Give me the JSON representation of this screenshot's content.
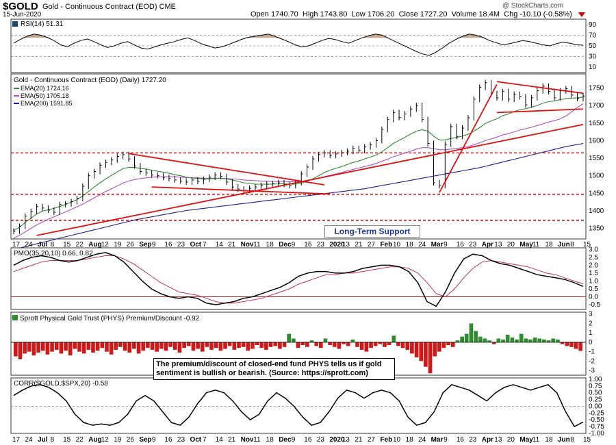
{
  "header": {
    "symbol": "$GOLD",
    "description": "Gold - Continuous Contract (EOD) CME",
    "date": "15-Jun-2020",
    "watermark": "@ StockCharts.com",
    "open_label": "Open",
    "open": "1740.70",
    "high_label": "High",
    "high": "1743.80",
    "low_label": "Low",
    "low": "1706.20",
    "close_label": "Close",
    "close": "1727.20",
    "volume_label": "Volume",
    "volume": "18.4M",
    "chg_label": "Chg",
    "chg": "-10.10 (-0.58%)"
  },
  "colors": {
    "price": "#000000",
    "ema20": "#2e8b2e",
    "ema50": "#b050c0",
    "ema200": "#1c1c8c",
    "trend": "#e01010",
    "pmo_signal": "#c0306a",
    "hist": "#d01818",
    "hist_pos": "#2e8b2e",
    "rsi_fill": "#b08868"
  },
  "chart_data": [
    {
      "type": "line",
      "title": "RSI(14) 51.31",
      "ylim": [
        0,
        100
      ],
      "yticks": [
        "90",
        "70",
        "50",
        "30",
        "10"
      ],
      "reference_lines": [
        70,
        50,
        30
      ],
      "values": [
        55,
        62,
        68,
        72,
        70,
        66,
        60,
        52,
        48,
        55,
        60,
        63,
        58,
        52,
        47,
        50,
        55,
        58,
        52,
        46,
        44,
        48,
        52,
        55,
        58,
        62,
        65,
        60,
        54,
        50,
        46,
        48,
        52,
        57,
        62,
        66,
        68,
        70,
        72,
        68,
        63,
        58,
        52,
        48,
        50,
        55,
        60,
        64,
        62,
        58,
        55,
        60,
        65,
        69,
        72,
        70,
        64,
        58,
        52,
        46,
        40,
        35,
        32,
        38,
        46,
        55,
        62,
        68,
        72,
        70,
        66,
        60,
        56,
        52,
        54,
        57,
        60,
        58,
        55,
        52,
        50,
        54,
        57,
        55,
        52,
        51.31
      ]
    },
    {
      "type": "line",
      "title": "Gold - Continuous Contract (EOD) (Daily) 1727.20",
      "ylim": [
        1320,
        1790
      ],
      "yticks": [
        "1750",
        "1700",
        "1650",
        "1600",
        "1550",
        "1500",
        "1450",
        "1400",
        "1350"
      ],
      "xticks": [
        "17",
        "24",
        "Jul",
        "8",
        "15",
        "22",
        "Aug",
        "12",
        "19",
        "26",
        "Sep",
        "9",
        "16",
        "23",
        "Oct",
        "7",
        "14",
        "21",
        "Nov",
        "11",
        "18",
        "Dec",
        "9",
        "16",
        "23",
        "2020",
        "13",
        "21",
        "27",
        "Feb",
        "10",
        "18",
        "24",
        "Mar",
        "9",
        "16",
        "23",
        "Apr",
        "13",
        "20",
        "May",
        "11",
        "18",
        "Jun",
        "8",
        "15"
      ],
      "legend": [
        "EMA(20) 1724.16",
        "EMA(50) 1705.18",
        "EMA(200) 1591.85"
      ],
      "close": [
        1342,
        1356,
        1385,
        1398,
        1412,
        1408,
        1402,
        1396,
        1418,
        1420,
        1426,
        1435,
        1470,
        1500,
        1512,
        1530,
        1538,
        1545,
        1555,
        1560,
        1548,
        1528,
        1512,
        1508,
        1502,
        1500,
        1495,
        1492,
        1488,
        1485,
        1482,
        1488,
        1484,
        1490,
        1496,
        1502,
        1498,
        1482,
        1468,
        1462,
        1458,
        1464,
        1468,
        1472,
        1476,
        1478,
        1480,
        1475,
        1472,
        1480,
        1505,
        1525,
        1548,
        1560,
        1565,
        1558,
        1562,
        1566,
        1570,
        1578,
        1572,
        1582,
        1588,
        1600,
        1632,
        1660,
        1680,
        1666,
        1676,
        1690,
        1700,
        1660,
        1592,
        1480,
        1472,
        1590,
        1640,
        1612,
        1636,
        1665,
        1718,
        1752,
        1765,
        1734,
        1722,
        1740,
        1718,
        1732,
        1725,
        1702,
        1722,
        1742,
        1755,
        1740,
        1722,
        1742,
        1748,
        1730,
        1720,
        1727.2
      ],
      "ema20": [
        1344,
        1353,
        1367,
        1379,
        1391,
        1399,
        1403,
        1407,
        1412,
        1418,
        1425,
        1432,
        1442,
        1455,
        1468,
        1480,
        1491,
        1501,
        1511,
        1520,
        1524,
        1524,
        1521,
        1519,
        1516,
        1513,
        1510,
        1507,
        1503,
        1500,
        1496,
        1494,
        1492,
        1491,
        1491,
        1492,
        1493,
        1491,
        1488,
        1484,
        1480,
        1478,
        1476,
        1476,
        1476,
        1476,
        1477,
        1477,
        1476,
        1476,
        1479,
        1484,
        1491,
        1500,
        1509,
        1516,
        1521,
        1526,
        1532,
        1538,
        1542,
        1548,
        1553,
        1559,
        1568,
        1580,
        1592,
        1601,
        1609,
        1619,
        1627,
        1631,
        1627,
        1613,
        1602,
        1602,
        1606,
        1609,
        1613,
        1618,
        1627,
        1637,
        1649,
        1656,
        1662,
        1671,
        1676,
        1683,
        1688,
        1691,
        1695,
        1700,
        1707,
        1711,
        1713,
        1717,
        1720,
        1721,
        1722,
        1724.16
      ],
      "ema50": [
        1322,
        1330,
        1340,
        1350,
        1360,
        1368,
        1376,
        1383,
        1390,
        1397,
        1404,
        1411,
        1419,
        1428,
        1437,
        1446,
        1455,
        1463,
        1471,
        1479,
        1485,
        1489,
        1492,
        1494,
        1496,
        1497,
        1497,
        1497,
        1497,
        1496,
        1495,
        1494,
        1494,
        1493,
        1493,
        1493,
        1493,
        1492,
        1491,
        1490,
        1488,
        1487,
        1486,
        1485,
        1485,
        1484,
        1484,
        1484,
        1483,
        1483,
        1484,
        1486,
        1489,
        1493,
        1497,
        1501,
        1505,
        1509,
        1514,
        1518,
        1522,
        1526,
        1530,
        1535,
        1541,
        1547,
        1554,
        1559,
        1565,
        1570,
        1576,
        1580,
        1580,
        1577,
        1574,
        1574,
        1576,
        1578,
        1580,
        1583,
        1588,
        1594,
        1600,
        1605,
        1610,
        1616,
        1620,
        1625,
        1630,
        1634,
        1638,
        1643,
        1648,
        1653,
        1657,
        1662,
        1670,
        1682,
        1695,
        1705.18
      ],
      "ema200": [
        1290,
        1294,
        1298,
        1302,
        1306,
        1310,
        1314,
        1318,
        1322,
        1326,
        1330,
        1334,
        1338,
        1342,
        1346,
        1350,
        1354,
        1358,
        1362,
        1366,
        1370,
        1374,
        1377,
        1380,
        1383,
        1386,
        1389,
        1392,
        1395,
        1398,
        1401,
        1403,
        1405,
        1407,
        1409,
        1411,
        1413,
        1415,
        1417,
        1419,
        1421,
        1423,
        1425,
        1427,
        1429,
        1431,
        1433,
        1435,
        1437,
        1439,
        1441,
        1443,
        1445,
        1447,
        1449,
        1451,
        1453,
        1455,
        1457,
        1459,
        1461,
        1463,
        1466,
        1469,
        1472,
        1475,
        1478,
        1481,
        1484,
        1487,
        1490,
        1493,
        1496,
        1499,
        1502,
        1505,
        1508,
        1511,
        1514,
        1517,
        1520,
        1523,
        1527,
        1531,
        1535,
        1539,
        1543,
        1547,
        1551,
        1555,
        1559,
        1563,
        1567,
        1571,
        1575,
        1579,
        1583,
        1586,
        1589,
        1591.85
      ]
    },
    {
      "type": "line",
      "title": "PMO(35,20,10) 0.66, 0.82",
      "ylim": [
        -0.8,
        3.1
      ],
      "yticks": [
        "3.0",
        "2.5",
        "2.0",
        "1.5",
        "1.0",
        "0.5",
        "0.0",
        "-0.5"
      ],
      "pmo": [
        2.0,
        2.3,
        2.5,
        2.6,
        2.5,
        2.3,
        2.2,
        2.3,
        2.5,
        2.7,
        2.8,
        2.6,
        2.2,
        1.6,
        1.0,
        0.5,
        0.2,
        0.0,
        -0.1,
        0.0,
        -0.1,
        -0.4,
        -0.5,
        -0.4,
        -0.3,
        -0.1,
        0.0,
        0.2,
        0.4,
        0.6,
        0.9,
        1.3,
        1.5,
        1.6,
        1.6,
        1.5,
        1.5,
        1.6,
        1.8,
        1.9,
        2.0,
        2.0,
        1.9,
        1.6,
        0.9,
        -0.3,
        -0.6,
        0.3,
        1.5,
        2.4,
        2.7,
        2.6,
        2.3,
        2.1,
        2.0,
        1.8,
        1.6,
        1.4,
        1.3,
        1.2,
        1.1,
        0.9,
        0.66
      ],
      "signal": [
        1.6,
        1.8,
        2.0,
        2.2,
        2.3,
        2.3,
        2.3,
        2.3,
        2.4,
        2.5,
        2.6,
        2.6,
        2.4,
        2.1,
        1.7,
        1.3,
        0.9,
        0.6,
        0.3,
        0.2,
        0.1,
        -0.1,
        -0.3,
        -0.4,
        -0.4,
        -0.3,
        -0.2,
        -0.1,
        0.1,
        0.3,
        0.5,
        0.8,
        1.0,
        1.2,
        1.4,
        1.4,
        1.5,
        1.5,
        1.6,
        1.7,
        1.8,
        1.9,
        1.9,
        1.8,
        1.5,
        0.9,
        0.2,
        0.0,
        0.5,
        1.2,
        1.8,
        2.2,
        2.3,
        2.2,
        2.1,
        2.0,
        1.9,
        1.7,
        1.5,
        1.4,
        1.2,
        1.0,
        0.82
      ]
    },
    {
      "type": "bar",
      "title": "Sprott Physical Gold Trust (PHYS) Premium/Discount -0.92",
      "ylim": [
        -3.5,
        3.2
      ],
      "yticks": [
        "3",
        "2",
        "1",
        "0",
        "-1",
        "-2",
        "-3"
      ],
      "values": [
        -1.5,
        -1.8,
        -1.2,
        -1.0,
        -1.4,
        -1.1,
        -0.9,
        -1.3,
        -1.0,
        -0.8,
        -1.2,
        -0.9,
        -1.4,
        -0.7,
        -1.0,
        -1.2,
        -0.8,
        -1.1,
        -0.9,
        -0.6,
        -1.0,
        -1.3,
        -0.8,
        -0.5,
        -0.9,
        -1.1,
        -0.7,
        -1.2,
        -0.9,
        -0.6,
        -0.8,
        -1.0,
        -0.7,
        -0.9,
        -0.5,
        -0.8,
        -1.1,
        -0.6,
        -0.4,
        -0.9,
        -0.7,
        -1.0,
        -0.5,
        -0.8,
        -0.6,
        -0.9,
        -0.7,
        -0.4,
        -0.8,
        -0.6,
        -0.5,
        -0.9,
        -0.7,
        -0.3,
        -0.6,
        -0.8,
        -0.5,
        -0.4,
        -0.7,
        -0.5,
        0.9,
        0.4,
        -0.6,
        -0.3,
        -0.5,
        0.2,
        -0.4,
        -0.6,
        0.4,
        -0.3,
        -0.5,
        -0.7,
        -0.2,
        -0.4,
        0.3,
        -0.5,
        -0.8,
        -1.0,
        -0.6,
        -0.4,
        -0.2,
        -0.5,
        -0.3,
        0.7,
        -0.4,
        -0.6,
        -0.8,
        -1.2,
        -1.6,
        -2.0,
        -2.6,
        -3.3,
        -1.5,
        -1.0,
        -0.6,
        -0.3,
        -0.5,
        0.2,
        0.6,
        0.9,
        2.0,
        1.2,
        0.6,
        0.4,
        0.2,
        -0.2,
        0.4,
        0.3,
        0.8,
        0.5,
        0.3,
        0.9,
        0.4,
        0.3,
        0.5,
        0.4,
        0.3,
        0.2,
        0.4,
        0.3,
        -0.2,
        -0.4,
        -0.5,
        -0.7,
        -0.92
      ]
    },
    {
      "type": "line",
      "title": "CORR($GOLD,$SPX,20) -0.58",
      "ylim": [
        -1.0,
        1.05
      ],
      "yticks": [
        "1.00",
        "0.75",
        "0.50",
        "0.25",
        "0.00",
        "-0.25",
        "-0.50",
        "-0.75",
        "-1.00"
      ],
      "values": [
        0.4,
        0.6,
        0.75,
        0.8,
        0.7,
        0.5,
        0.2,
        -0.3,
        -0.6,
        -0.7,
        -0.65,
        -0.7,
        -0.6,
        -0.3,
        0.2,
        0.4,
        0.2,
        -0.2,
        -0.6,
        -0.7,
        -0.4,
        0.1,
        0.5,
        0.6,
        0.5,
        0.2,
        -0.2,
        -0.5,
        -0.3,
        0.2,
        0.5,
        0.3,
        0.0,
        -0.4,
        -0.7,
        -0.6,
        -0.2,
        0.3,
        0.6,
        0.5,
        0.3,
        0.5,
        0.6,
        0.5,
        0.2,
        -0.4,
        -0.7,
        -0.6,
        -0.2,
        0.5,
        0.8,
        0.7,
        0.6,
        0.4,
        0.2,
        0.5,
        0.7,
        0.8,
        0.7,
        0.6,
        0.7,
        0.8,
        0.5,
        -0.2,
        -0.75,
        -0.58
      ]
    }
  ],
  "callout": {
    "line1": "The premium/discount of closed-end fund PHYS tells us if gold",
    "line2": "sentiment is bullish or bearish. (Source: https://sprott.com)"
  },
  "annotation": {
    "long_term_support": "Long-Term Support"
  }
}
